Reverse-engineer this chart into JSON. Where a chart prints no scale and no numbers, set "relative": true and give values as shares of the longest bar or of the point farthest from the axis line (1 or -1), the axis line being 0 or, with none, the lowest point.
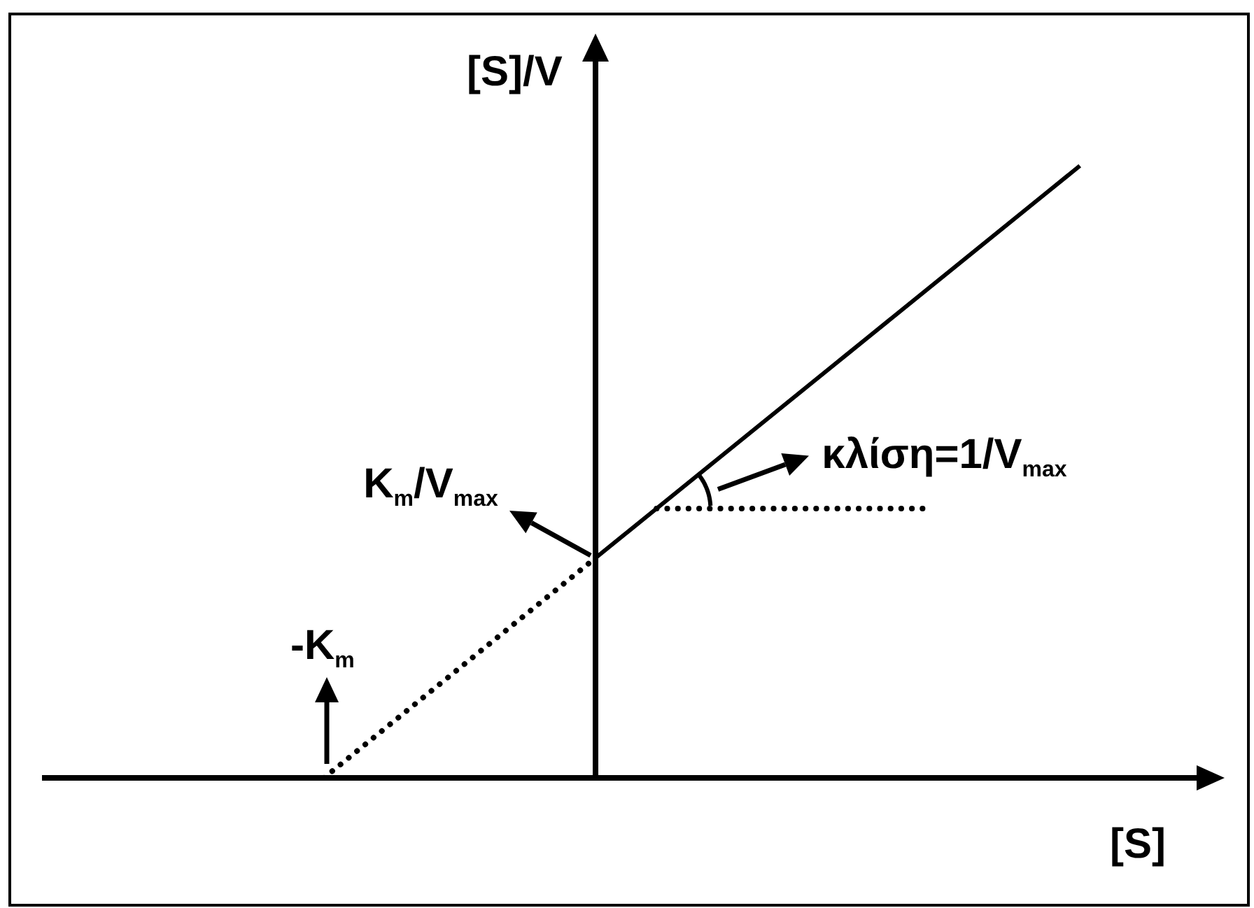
{
  "chart_data": {
    "type": "line",
    "relative": true,
    "xlabel": "[S]",
    "ylabel": "[S]/V",
    "marker": "none",
    "tick_labels": false,
    "categories": [
      null,
      null,
      null,
      null,
      null,
      null,
      null,
      null,
      null,
      null,
      null,
      null,
      null,
      null,
      null,
      null,
      null,
      null,
      null,
      null,
      null,
      null,
      null,
      null,
      null,
      null,
      null,
      null,
      null,
      null,
      null,
      null,
      null,
      null,
      null,
      null,
      null,
      null,
      null
    ],
    "series": [
      {
        "color": "#000000",
        "line_style": "solid",
        "values": [
          null,
          null,
          null,
          null,
          null,
          null,
          null,
          null,
          null,
          null,
          null,
          null,
          null,
          null,
          null,
          null,
          null,
          null,
          0.36,
          0.4,
          0.44,
          0.48,
          0.52,
          0.56,
          0.6,
          0.64,
          0.68,
          0.72,
          0.76,
          0.8,
          0.84,
          0.88,
          0.92,
          0.96,
          1,
          null,
          null,
          null,
          null
        ]
      },
      {
        "color": "#000000",
        "line_style": "dotted",
        "values": [
          null,
          null,
          null,
          null,
          null,
          null,
          null,
          null,
          null,
          0,
          0.04,
          0.08,
          0.12,
          0.16,
          0.2,
          0.24,
          0.28,
          0.32,
          0.36,
          null,
          null,
          null,
          null,
          null,
          null,
          null,
          null,
          null,
          null,
          null,
          null,
          null,
          null,
          null,
          null,
          null,
          null,
          null,
          null
        ]
      },
      {
        "color": "#000000",
        "line_style": "dotted",
        "values": [
          null,
          null,
          null,
          null,
          null,
          null,
          null,
          null,
          null,
          null,
          null,
          null,
          null,
          null,
          null,
          null,
          null,
          null,
          null,
          null,
          0.44,
          0.44,
          0.44,
          0.44,
          0.44,
          0.44,
          0.44,
          0.44,
          0.44,
          0.44,
          null,
          null,
          null,
          null,
          null,
          null,
          null,
          null,
          null
        ]
      }
    ],
    "annotations": [
      "K$_{m}$/V$_{max}$",
      "κλίση=1/V$_{max}$",
      "-K$_{m}$"
    ]
  }
}
